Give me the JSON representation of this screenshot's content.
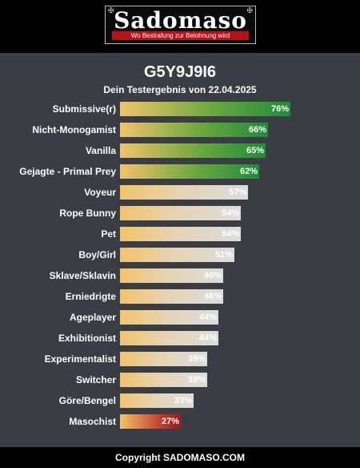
{
  "header": {
    "logo_text": "Sadomaso",
    "tagline": "Wo Bestrafung zur Belohnung wird"
  },
  "result": {
    "code": "G5Y9J9I6",
    "subtitle": "Dein Testergebnis von 22.04.2025"
  },
  "items": [
    {
      "label": "Submissive(r)",
      "value": 76,
      "text": "76%",
      "style": "green"
    },
    {
      "label": "Nicht-Monogamist",
      "value": 66,
      "text": "66%",
      "style": "green"
    },
    {
      "label": "Vanilla",
      "value": 65,
      "text": "65%",
      "style": "green"
    },
    {
      "label": "Gejagte - Primal Prey",
      "value": 62,
      "text": "62%",
      "style": "green"
    },
    {
      "label": "Voyeur",
      "value": 57,
      "text": "57%",
      "style": "light"
    },
    {
      "label": "Rope Bunny",
      "value": 54,
      "text": "54%",
      "style": "light"
    },
    {
      "label": "Pet",
      "value": 54,
      "text": "54%",
      "style": "light"
    },
    {
      "label": "Boy/Girl",
      "value": 51,
      "text": "51%",
      "style": "light"
    },
    {
      "label": "Sklave/Sklavin",
      "value": 46,
      "text": "46%",
      "style": "light"
    },
    {
      "label": "Erniedrigte",
      "value": 46,
      "text": "46%",
      "style": "light"
    },
    {
      "label": "Ageplayer",
      "value": 44,
      "text": "44%",
      "style": "light"
    },
    {
      "label": "Exhibitionist",
      "value": 44,
      "text": "44%",
      "style": "light"
    },
    {
      "label": "Experimentalist",
      "value": 39,
      "text": "39%",
      "style": "light"
    },
    {
      "label": "Switcher",
      "value": 39,
      "text": "39%",
      "style": "light"
    },
    {
      "label": "Göre/Bengel",
      "value": 33,
      "text": "33%",
      "style": "light"
    },
    {
      "label": "Masochist",
      "value": 27,
      "text": "27%",
      "style": "red"
    }
  ],
  "footer": {
    "copyright": "Copyright SADOMASO.COM"
  }
}
